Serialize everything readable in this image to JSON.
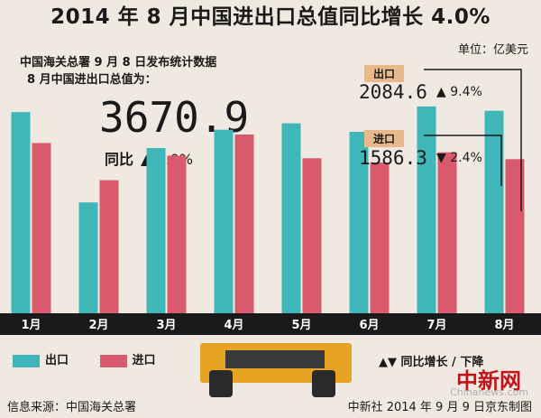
{
  "title": "2014 年 8 月中国进出口总值同比增长 4.0%",
  "unit": "单位：亿美元",
  "source_line": "中国海关总署 9 月 8 日发布统计数据",
  "total_line": "8 月中国进出口总值为：",
  "total_value": "3670.9",
  "total_yoy_label": "同比",
  "total_yoy": "▲ 4.0%",
  "export_box": {
    "label": "出口",
    "value": "2084.6",
    "change": "▲ 9.4%"
  },
  "import_box": {
    "label": "进口",
    "value": "1586.3",
    "change": "▼ 2.4%"
  },
  "legend": {
    "export": "出口",
    "import": "进口",
    "note": "▲▼ 同比增长 / 下降"
  },
  "source": "信息来源：中国海关总署",
  "credit": "中新社 2014 年 9 月 9 日京东制图",
  "watermark": "中新网",
  "watermark_en": "Chinanews.com",
  "colors": {
    "export": "#3fb6b8",
    "import": "#d85a6c",
    "axis_band": "#1a1a1a",
    "tag": "#e8b98a"
  },
  "chart_data": {
    "type": "bar",
    "categories": [
      "1月",
      "2月",
      "3月",
      "4月",
      "5月",
      "6月",
      "7月",
      "8月"
    ],
    "series": [
      {
        "name": "出口",
        "values": [
          2071,
          1141,
          1701,
          1889,
          1955,
          1868,
          2129,
          2084.6
        ]
      },
      {
        "name": "进口",
        "values": [
          1753,
          1370,
          1623,
          1840,
          1596,
          1553,
          1657,
          1586.3
        ]
      }
    ],
    "ylim": [
      0,
      2500
    ],
    "grid": false
  }
}
